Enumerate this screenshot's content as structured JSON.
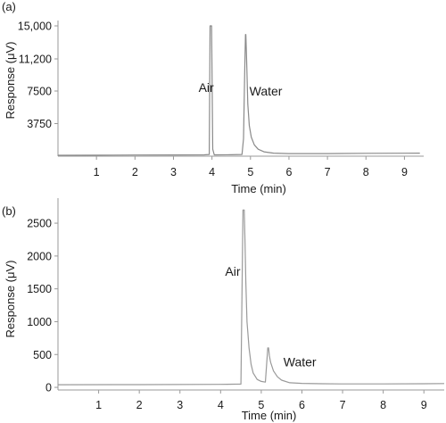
{
  "chart_data": [
    {
      "type": "line",
      "panel_label": "(a)",
      "xlabel": "Time (min)",
      "ylabel": "Response (μV)",
      "xlim": [
        0,
        9.5
      ],
      "ylim": [
        0,
        15000
      ],
      "x_ticks": [
        "1",
        "2",
        "3",
        "4",
        "5",
        "6",
        "7",
        "8",
        "9"
      ],
      "x_tick_values": [
        1,
        2,
        3,
        4,
        5,
        6,
        7,
        8,
        9
      ],
      "y_ticks": [
        "3750",
        "7500",
        "11,200",
        "15,000"
      ],
      "y_tick_values": [
        3750,
        7500,
        11200,
        15000
      ],
      "grid": false,
      "color": "#8a8a8a",
      "series": [
        {
          "x": [
            0,
            1,
            2,
            3,
            3.8,
            3.93,
            3.95,
            3.97,
            3.99,
            4.02,
            4.06,
            4.1,
            4.5,
            4.78,
            4.82,
            4.85,
            4.87,
            4.88,
            4.9,
            4.93,
            4.97,
            5.02,
            5.1,
            5.2,
            5.35,
            5.6,
            6,
            7,
            8,
            9,
            9.4
          ],
          "y": [
            100,
            110,
            130,
            140,
            150,
            200,
            15000,
            15000,
            15000,
            800,
            150,
            150,
            160,
            200,
            2000,
            9500,
            14000,
            14000,
            11000,
            6000,
            3500,
            2200,
            1300,
            800,
            500,
            350,
            300,
            300,
            330,
            340,
            350
          ]
        }
      ],
      "annotations": [
        {
          "text": "Air",
          "x": 3.85,
          "y": 7400
        },
        {
          "text": "Water",
          "x": 5.4,
          "y": 7000
        }
      ]
    },
    {
      "type": "line",
      "panel_label": "(b)",
      "xlabel": "Time (min)",
      "ylabel": "Response (μV)",
      "xlim": [
        0,
        9.5
      ],
      "ylim": [
        -40,
        2800
      ],
      "x_ticks": [
        "1",
        "2",
        "3",
        "4",
        "5",
        "6",
        "7",
        "8",
        "9"
      ],
      "x_tick_values": [
        1,
        2,
        3,
        4,
        5,
        6,
        7,
        8,
        9
      ],
      "y_ticks": [
        "0",
        "500",
        "1000",
        "1500",
        "2000",
        "2500"
      ],
      "y_tick_values": [
        0,
        500,
        1000,
        1500,
        2000,
        2500
      ],
      "grid": false,
      "color": "#9a9a9a",
      "series": [
        {
          "x": [
            0,
            2,
            4,
            4.5,
            4.55,
            4.58,
            4.6,
            4.62,
            4.65,
            4.7,
            4.75,
            4.8,
            4.9,
            5.0,
            5.1,
            5.16,
            5.18,
            5.2,
            5.23,
            5.3,
            5.4,
            5.5,
            5.7,
            6.0,
            6.5,
            7,
            8,
            9,
            9.5
          ],
          "y": [
            40,
            42,
            45,
            50,
            2700,
            2700,
            2200,
            1600,
            1000,
            600,
            350,
            220,
            120,
            90,
            80,
            600,
            600,
            480,
            380,
            250,
            160,
            110,
            70,
            60,
            55,
            52,
            52,
            55,
            58
          ]
        }
      ],
      "annotations": [
        {
          "text": "Air",
          "x": 4.3,
          "y": 1700
        },
        {
          "text": "Water",
          "x": 5.95,
          "y": 320
        }
      ]
    }
  ],
  "panel_labels": [
    "(a)",
    "(b)"
  ]
}
